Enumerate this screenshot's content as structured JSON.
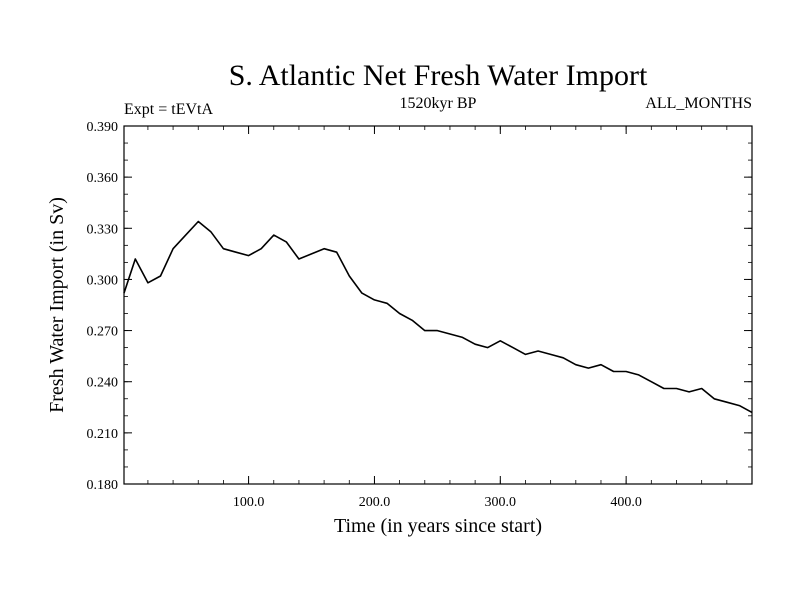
{
  "chart_data": {
    "type": "line",
    "title": "S. Atlantic Net Fresh Water Import",
    "subtitle_left": "Expt = tEVtA",
    "subtitle_center": "1520kyr BP",
    "subtitle_right": "ALL_MONTHS",
    "xlabel": "Time (in years since start)",
    "ylabel": "Fresh Water Import (in Sv)",
    "xlim": [
      1,
      500
    ],
    "ylim": [
      0.18,
      0.39
    ],
    "x_ticks": [
      100,
      200,
      300,
      400
    ],
    "x_tick_labels": [
      "100.0",
      "200.0",
      "300.0",
      "400.0"
    ],
    "y_ticks": [
      0.18,
      0.21,
      0.24,
      0.27,
      0.3,
      0.33,
      0.36,
      0.39
    ],
    "y_tick_labels": [
      "0.180",
      "0.210",
      "0.240",
      "0.270",
      "0.300",
      "0.330",
      "0.360",
      "0.390"
    ],
    "grid": false,
    "series": [
      {
        "name": "fresh water import",
        "color": "#000000",
        "x": [
          1,
          10,
          20,
          30,
          40,
          50,
          60,
          70,
          80,
          90,
          100,
          110,
          120,
          130,
          140,
          150,
          160,
          170,
          180,
          190,
          200,
          210,
          220,
          230,
          240,
          250,
          260,
          270,
          280,
          290,
          300,
          310,
          320,
          330,
          340,
          350,
          360,
          370,
          380,
          390,
          400,
          410,
          420,
          430,
          440,
          450,
          460,
          470,
          480,
          490,
          500
        ],
        "values": [
          0.292,
          0.312,
          0.298,
          0.302,
          0.318,
          0.326,
          0.334,
          0.328,
          0.318,
          0.316,
          0.314,
          0.318,
          0.326,
          0.322,
          0.312,
          0.315,
          0.318,
          0.316,
          0.302,
          0.292,
          0.288,
          0.286,
          0.28,
          0.276,
          0.27,
          0.27,
          0.268,
          0.266,
          0.262,
          0.26,
          0.264,
          0.26,
          0.256,
          0.258,
          0.256,
          0.254,
          0.25,
          0.248,
          0.25,
          0.246,
          0.246,
          0.244,
          0.24,
          0.236,
          0.236,
          0.234,
          0.236,
          0.23,
          0.228,
          0.226,
          0.222
        ]
      }
    ]
  }
}
